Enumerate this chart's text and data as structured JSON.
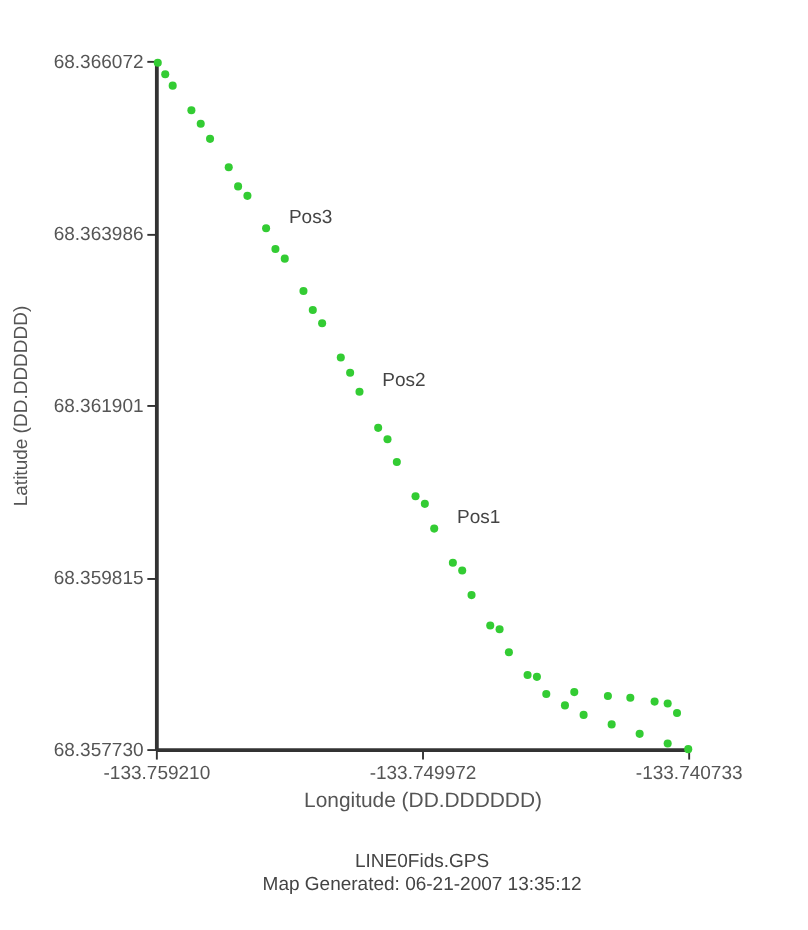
{
  "chart_data": {
    "type": "scatter",
    "xlabel": "Longitude (DD.DDDDDD)",
    "ylabel": "Latitude (DD.DDDDDD)",
    "annotations": [
      {
        "text": "Pos3",
        "x": -133.755385,
        "y": 68.364044
      },
      {
        "text": "Pos2",
        "x": -133.752143,
        "y": 68.362062
      },
      {
        "text": "Pos1",
        "x": -133.74955,
        "y": 68.360403
      },
      "LINE0Fids.GPS",
      "Map Generated: 06-21-2007 13:35:12"
    ],
    "series": [
      {
        "color": "#33cc33",
        "x": [
          -133.759145,
          -133.758627,
          -133.757978,
          -133.75733,
          -133.756682,
          -133.756033,
          -133.755385,
          -133.754737,
          -133.754088,
          -133.75344,
          -133.752792,
          -133.752143,
          -133.751495,
          -133.750847,
          -133.750198,
          -133.74955,
          -133.748902,
          -133.748254,
          -133.747605,
          -133.746957,
          -133.746309,
          -133.74566,
          -133.745012,
          -133.744364,
          -133.743391,
          -133.742419,
          -133.741446,
          -133.740733,
          -133.758886,
          -133.757654,
          -133.756357,
          -133.755061,
          -133.753764,
          -133.752468,
          -133.751171,
          -133.749875,
          -133.748578,
          -133.747281,
          -133.745985,
          -133.744688,
          -133.743521,
          -133.742743,
          -133.7419,
          -133.741446,
          -133.741122
        ],
        "values": [
          68.366049,
          68.365772,
          68.365473,
          68.365127,
          68.364782,
          68.364436,
          68.364044,
          68.363675,
          68.363284,
          68.362892,
          68.362477,
          68.362062,
          68.361624,
          68.36121,
          68.360795,
          68.360403,
          68.359988,
          68.359597,
          68.359228,
          68.358905,
          68.358629,
          68.358398,
          68.35826,
          68.358145,
          68.35803,
          68.357915,
          68.357799,
          68.35773,
          68.365911,
          68.365311,
          68.364551,
          68.363791,
          68.363053,
          68.362293,
          68.361486,
          68.360703,
          68.359896,
          68.359182,
          68.358606,
          68.358421,
          68.358375,
          68.358352,
          68.358306,
          68.358283,
          68.358168
        ]
      }
    ],
    "xlim": [
      -133.75921,
      -133.740733
    ],
    "xticks": [
      {
        "value": -133.75921,
        "label": "-133.759210"
      },
      -133.749972,
      -133.740733
    ],
    "ylim": [
      68.35773,
      68.366072
    ],
    "yticks": [
      {
        "value": 68.35773,
        "label": "68.357730"
      },
      68.359815,
      68.361901,
      68.363986,
      68.366072
    ],
    "grid": false,
    "legend": false,
    "marker": "circle"
  }
}
